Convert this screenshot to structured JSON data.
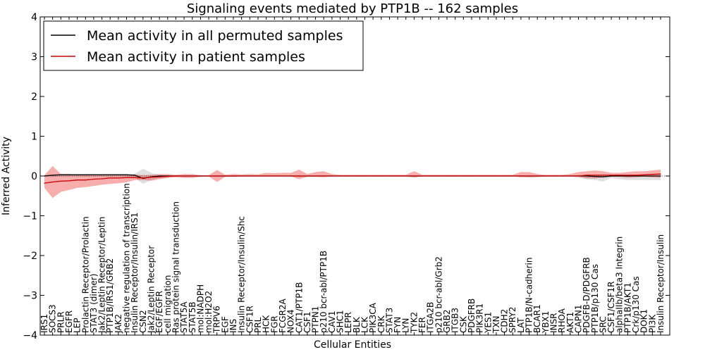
{
  "chart_data": {
    "type": "line",
    "title": "Signaling events mediated by PTP1B -- 162 samples",
    "xlabel": "Cellular Entities",
    "ylabel": "Inferred Activity",
    "ylim": [
      -4,
      4
    ],
    "yticks": [
      -4,
      -3,
      -2,
      -1,
      0,
      1,
      2,
      3,
      4
    ],
    "ytick_labels": [
      "−4",
      "−3",
      "−2",
      "−1",
      "0",
      "1",
      "2",
      "3",
      "4"
    ],
    "grid": false,
    "legend_position": "top-left",
    "categories": [
      "IRS1",
      "SOCS3",
      "PRLR",
      "EGFR",
      "LEP",
      "Prolactin Receptor/Prolactin",
      "STAT3 (dimer)",
      "Jak2/Leptin Receptor/Leptin",
      "PTP1B/IRS1/GRB2",
      "JAK2",
      "negative regulation of transcription",
      "Insulin Receptor/Insulin/IRS1",
      "CSN2",
      "Jak2/Leptin Receptor",
      "EGF/EGFR",
      "cell migration",
      "Ras protein signal transduction",
      "STAT5A",
      "STAT5B",
      "mol:NADPH",
      "mol:H2O2",
      "TRPV6",
      "EGF",
      "INS",
      "Insulin Receptor/Insulin/Shc",
      "CSF1R",
      "PRL",
      "HCK",
      "FGR",
      "FCGR2A",
      "NOX4",
      "CAT1/PTP1B",
      "CSF1",
      "PTPN1",
      "p210 bcr-abl/PTP1B",
      "CAV1",
      "SHC1",
      "LEPR",
      "BLK",
      "LCK",
      "PIK3CA",
      "CRK",
      "STAT3",
      "FYN",
      "LYN",
      "TYK2",
      "FER",
      "ITGA2B",
      "p210 bcr-abl/Grb2",
      "GRB2",
      "ITGB3",
      "CSK",
      "PDGFRB",
      "PIK3R1",
      "YES1",
      "TXN",
      "CDH2",
      "SPRY2",
      "LAT",
      "PTP1B/N-cadherin",
      "BCAR1",
      "YBX1",
      "INSR",
      "RHOA",
      "AKT1",
      "CAPN1",
      "PDGFB-D/PDGFRB",
      "PTP1B/p130 Cas",
      "SRC",
      "CSF1/CSF1R",
      "alphaIIb/beta3 Integrin",
      "PTP1B/AKT1",
      "Crk/p130 Cas",
      "DOK1",
      "PI3K",
      "Insulin Receptor/Insulin"
    ],
    "series": [
      {
        "name": "Mean activity in all permuted samples",
        "color": "#000000",
        "values": [
          0,
          0.02,
          0.03,
          0.03,
          0.03,
          0.03,
          0.03,
          0.03,
          0.03,
          0.03,
          0.03,
          0.02,
          -0.06,
          -0.02,
          0,
          0,
          0,
          0,
          0,
          0,
          0,
          0,
          0,
          0,
          0,
          0,
          0,
          0,
          0,
          0,
          0,
          0,
          0,
          0,
          0,
          0,
          0,
          0,
          0,
          0,
          0,
          0,
          0,
          0,
          0,
          0,
          0,
          0,
          0,
          0,
          0,
          0,
          0,
          0,
          0,
          0,
          0,
          0,
          0,
          0,
          0,
          0,
          0,
          0,
          0,
          0,
          0,
          -0.01,
          -0.02,
          0,
          0,
          0,
          0,
          0,
          0,
          0
        ],
        "lower": [
          -0.02,
          -0.02,
          -0.02,
          -0.02,
          -0.02,
          -0.02,
          -0.02,
          -0.02,
          -0.02,
          -0.02,
          -0.02,
          -0.04,
          -0.2,
          -0.1,
          -0.05,
          -0.03,
          -0.01,
          -0.01,
          -0.01,
          -0.01,
          -0.01,
          -0.01,
          -0.01,
          -0.01,
          -0.01,
          -0.01,
          -0.01,
          -0.01,
          -0.01,
          -0.01,
          -0.01,
          -0.01,
          -0.01,
          -0.01,
          -0.01,
          -0.01,
          -0.01,
          -0.01,
          -0.01,
          -0.01,
          -0.01,
          -0.01,
          -0.01,
          -0.01,
          -0.01,
          -0.04,
          -0.01,
          -0.01,
          -0.01,
          -0.01,
          -0.01,
          -0.01,
          -0.01,
          -0.01,
          -0.01,
          -0.01,
          -0.01,
          -0.01,
          -0.01,
          -0.03,
          -0.03,
          -0.01,
          -0.01,
          -0.01,
          -0.01,
          -0.04,
          -0.08,
          -0.1,
          -0.14,
          -0.05,
          -0.08,
          -0.1,
          -0.1,
          -0.1,
          -0.1,
          -0.1
        ],
        "upper": [
          0.02,
          0.04,
          0.05,
          0.05,
          0.05,
          0.05,
          0.05,
          0.05,
          0.05,
          0.05,
          0.05,
          0.06,
          0.18,
          0.08,
          0.03,
          0.02,
          0.01,
          0.01,
          0.01,
          0.01,
          0.01,
          0.01,
          0.01,
          0.01,
          0.01,
          0.01,
          0.01,
          0.01,
          0.01,
          0.01,
          0.01,
          0.01,
          0.01,
          0.01,
          0.01,
          0.01,
          0.01,
          0.01,
          0.01,
          0.01,
          0.01,
          0.01,
          0.01,
          0.01,
          0.01,
          0.02,
          0.01,
          0.01,
          0.01,
          0.01,
          0.01,
          0.01,
          0.01,
          0.01,
          0.01,
          0.01,
          0.01,
          0.01,
          0.01,
          0.01,
          0.01,
          0.01,
          0.01,
          0.01,
          0.01,
          0.02,
          0.03,
          0.03,
          0.03,
          0.03,
          0.03,
          0.03,
          0.03,
          0.03,
          0.03,
          0.03
        ],
        "band_color": "#bbbbbb"
      },
      {
        "name": "Mean activity in patient samples",
        "color": "#cc0000",
        "values": [
          -0.18,
          -0.15,
          -0.13,
          -0.12,
          -0.1,
          -0.1,
          -0.08,
          -0.07,
          -0.05,
          -0.05,
          -0.04,
          -0.04,
          -0.05,
          -0.03,
          -0.02,
          -0.01,
          0,
          0,
          0,
          0,
          0,
          0,
          0,
          0,
          0,
          0,
          0,
          0,
          0,
          0,
          0,
          0,
          0,
          0,
          0,
          0,
          0,
          0,
          0,
          0,
          0,
          0,
          0,
          0,
          0,
          0,
          0,
          0,
          0,
          0,
          0,
          0,
          0,
          0,
          0,
          0,
          0,
          0,
          0,
          0,
          0,
          0,
          0,
          0,
          0,
          0,
          0.02,
          0.02,
          0.02,
          0.02,
          0.02,
          0.02,
          0.02,
          0.03,
          0.04,
          0.05
        ],
        "lower": [
          -0.3,
          -0.55,
          -0.4,
          -0.35,
          -0.3,
          -0.28,
          -0.25,
          -0.22,
          -0.2,
          -0.18,
          -0.16,
          -0.1,
          -0.1,
          -0.12,
          -0.08,
          -0.05,
          -0.03,
          -0.05,
          -0.05,
          -0.02,
          -0.01,
          -0.15,
          -0.02,
          -0.02,
          -0.01,
          -0.01,
          -0.01,
          -0.01,
          -0.01,
          -0.01,
          -0.01,
          -0.08,
          -0.02,
          -0.02,
          -0.03,
          -0.01,
          -0.01,
          -0.01,
          -0.01,
          -0.01,
          -0.01,
          -0.01,
          -0.01,
          -0.01,
          -0.01,
          -0.03,
          -0.01,
          -0.01,
          -0.01,
          -0.01,
          -0.01,
          -0.01,
          -0.01,
          -0.01,
          -0.01,
          -0.01,
          -0.01,
          -0.01,
          -0.03,
          -0.03,
          -0.02,
          -0.01,
          -0.01,
          -0.01,
          -0.01,
          -0.02,
          -0.06,
          -0.06,
          -0.04,
          -0.02,
          -0.02,
          -0.04,
          -0.03,
          -0.02,
          -0.03,
          -0.04
        ],
        "upper": [
          0.02,
          0.25,
          0.05,
          0.05,
          0.02,
          0.03,
          0.03,
          0.03,
          0.03,
          0.03,
          0.03,
          0.04,
          0.02,
          0.03,
          0.05,
          0.05,
          0.03,
          0.05,
          0.05,
          0.02,
          0.02,
          0.15,
          0.03,
          0.05,
          0.04,
          0.05,
          0.04,
          0.08,
          0.07,
          0.08,
          0.08,
          0.16,
          0.05,
          0.1,
          0.12,
          0.05,
          0.03,
          0.03,
          0.03,
          0.03,
          0.03,
          0.03,
          0.03,
          0.03,
          0.03,
          0.12,
          0.03,
          0.03,
          0.03,
          0.03,
          0.03,
          0.03,
          0.03,
          0.03,
          0.03,
          0.03,
          0.03,
          0.03,
          0.1,
          0.1,
          0.05,
          0.03,
          0.03,
          0.03,
          0.05,
          0.1,
          0.12,
          0.14,
          0.12,
          0.08,
          0.08,
          0.1,
          0.12,
          0.12,
          0.14,
          0.16
        ],
        "band_color": "#ee3333"
      }
    ]
  }
}
